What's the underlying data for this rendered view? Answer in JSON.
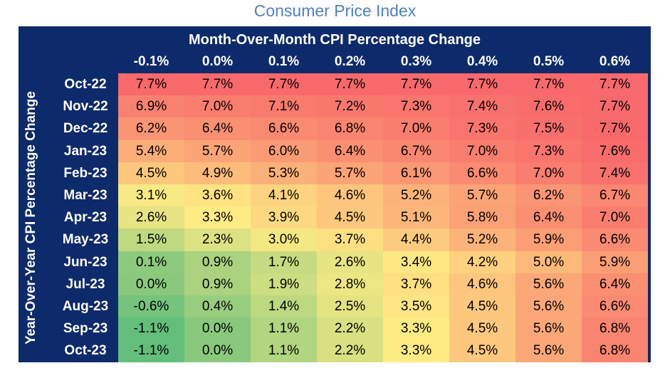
{
  "title": "Consumer Price Index",
  "chart_data": {
    "type": "heatmap",
    "title": "Consumer Price Index",
    "column_axis_title": "Month-Over-Month CPI Percentage Change",
    "row_axis_title": "Year-Over-Year CPI Percentage Change",
    "columns": [
      "-0.1%",
      "0.0%",
      "0.1%",
      "0.2%",
      "0.3%",
      "0.4%",
      "0.5%",
      "0.6%"
    ],
    "rows": [
      "Oct-22",
      "Nov-22",
      "Dec-22",
      "Jan-23",
      "Feb-23",
      "Mar-23",
      "Apr-23",
      "May-23",
      "Jun-23",
      "Jul-23",
      "Aug-23",
      "Sep-23",
      "Oct-23"
    ],
    "values": [
      [
        7.7,
        7.7,
        7.7,
        7.7,
        7.7,
        7.7,
        7.7,
        7.7
      ],
      [
        6.9,
        7.0,
        7.1,
        7.2,
        7.3,
        7.4,
        7.6,
        7.7
      ],
      [
        6.2,
        6.4,
        6.6,
        6.8,
        7.0,
        7.3,
        7.5,
        7.7
      ],
      [
        5.4,
        5.7,
        6.0,
        6.4,
        6.7,
        7.0,
        7.3,
        7.6
      ],
      [
        4.5,
        4.9,
        5.3,
        5.7,
        6.1,
        6.6,
        7.0,
        7.4
      ],
      [
        3.1,
        3.6,
        4.1,
        4.6,
        5.2,
        5.7,
        6.2,
        6.7
      ],
      [
        2.6,
        3.3,
        3.9,
        4.5,
        5.1,
        5.8,
        6.4,
        7.0
      ],
      [
        1.5,
        2.3,
        3.0,
        3.7,
        4.4,
        5.2,
        5.9,
        6.6
      ],
      [
        0.1,
        0.9,
        1.7,
        2.6,
        3.4,
        4.2,
        5.0,
        5.9
      ],
      [
        0.0,
        0.9,
        1.9,
        2.8,
        3.7,
        4.6,
        5.6,
        6.4
      ],
      [
        -0.6,
        0.4,
        1.4,
        2.5,
        3.5,
        4.5,
        5.6,
        6.6
      ],
      [
        -1.1,
        0.0,
        1.1,
        2.2,
        3.3,
        4.5,
        5.6,
        6.8
      ],
      [
        -1.1,
        0.0,
        1.1,
        2.2,
        3.3,
        4.5,
        5.6,
        6.8
      ]
    ],
    "value_format": "0.0%",
    "color_scale": {
      "low": "#63be7b",
      "mid": "#ffeb84",
      "high": "#f8696b",
      "min": -1.1,
      "mid_value": 3.3,
      "max": 7.7
    }
  },
  "colors": {
    "frame": "#0d2a6b",
    "header_text": "#ffffff",
    "title_text": "#4f81bd"
  }
}
